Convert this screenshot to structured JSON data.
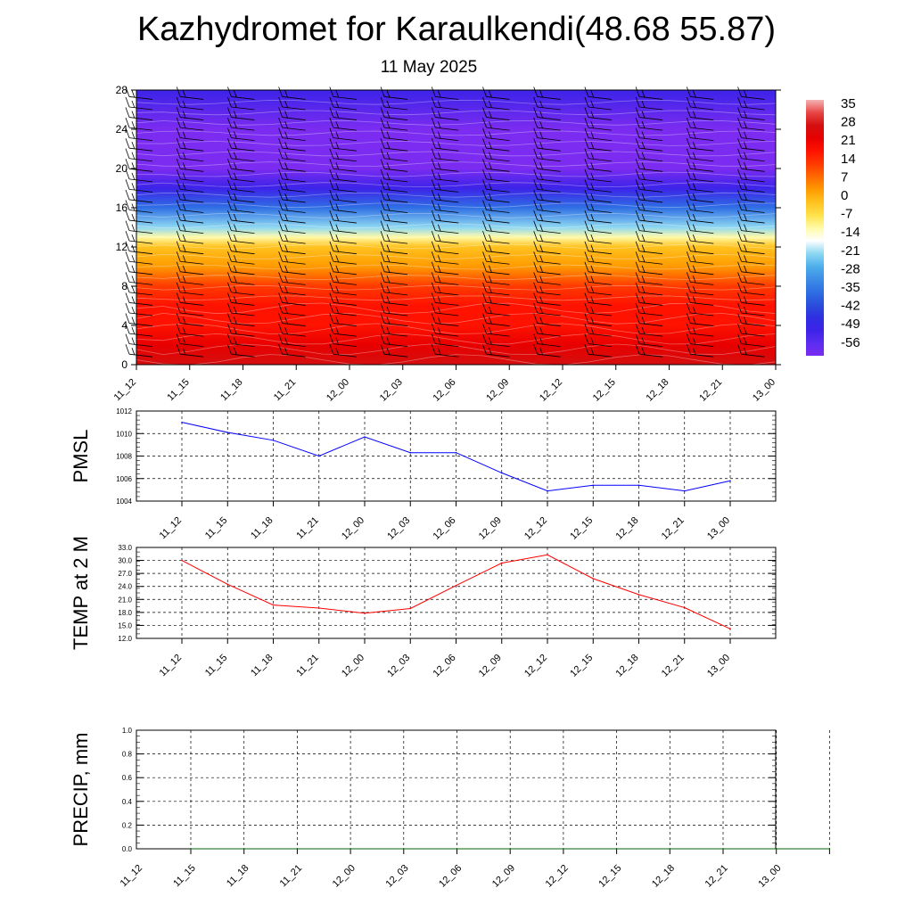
{
  "header": {
    "title": "Kazhydromet for Karaulkendi(48.68 55.87)",
    "date": "11 May 2025"
  },
  "colors": {
    "pmsl_line": "#0000ff",
    "temp_line": "#ff0000",
    "precip_line": "#006400",
    "grid": "#000000",
    "palette": [
      "#7b2cf0",
      "#5a2df0",
      "#3c23e8",
      "#2f2fe0",
      "#2a4fdc",
      "#2f6fe4",
      "#3d8de6",
      "#4fb0ec",
      "#8ed8f2",
      "#ffffff",
      "#fffaa6",
      "#ffe14a",
      "#ffc21f",
      "#ff9a00",
      "#ff6a00",
      "#ff3a00",
      "#ff1200",
      "#e80000",
      "#d40f0f",
      "#e84545",
      "#f4b4b4"
    ]
  },
  "chart_data": [
    {
      "type": "heatmap",
      "name": "vertical-cross-section",
      "x": [
        "11_12",
        "11_15",
        "11_18",
        "11_21",
        "12_00",
        "12_03",
        "12_06",
        "12_09",
        "12_12",
        "12_15",
        "12_18",
        "12_21",
        "13_00"
      ],
      "yticks": [
        "28",
        "24",
        "20",
        "16",
        "12",
        "8",
        "4",
        "0"
      ],
      "ylim": [
        0,
        28
      ],
      "colorbar_labels": [
        "35",
        "28",
        "21",
        "14",
        "7",
        "0",
        "-7",
        "-14",
        "-21",
        "-28",
        "-35",
        "-42",
        "-49",
        "-56"
      ],
      "temperature_profile": [
        {
          "level": 0,
          "value": 30
        },
        {
          "level": 2,
          "value": 26
        },
        {
          "level": 4,
          "value": 22
        },
        {
          "level": 6,
          "value": 18
        },
        {
          "level": 8,
          "value": 13
        },
        {
          "level": 10,
          "value": 7
        },
        {
          "level": 12,
          "value": -2
        },
        {
          "level": 13,
          "value": -12
        },
        {
          "level": 14,
          "value": -22
        },
        {
          "level": 16,
          "value": -35
        },
        {
          "level": 18,
          "value": -50
        },
        {
          "level": 20,
          "value": -58
        },
        {
          "level": 22,
          "value": -60
        },
        {
          "level": 24,
          "value": -58
        },
        {
          "level": 28,
          "value": -52
        }
      ],
      "wind_barbs": true
    },
    {
      "type": "line",
      "ylabel": "PMSL",
      "categories": [
        "11_12",
        "11_15",
        "11_18",
        "11_21",
        "12_00",
        "12_03",
        "12_06",
        "12_09",
        "12_12",
        "12_15",
        "12_18",
        "12_21",
        "13_00"
      ],
      "values": [
        1011.0,
        1010.1,
        1009.4,
        1008.0,
        1009.7,
        1008.3,
        1008.3,
        1006.5,
        1004.9,
        1005.4,
        1005.4,
        1004.9,
        1005.8
      ],
      "ylim": [
        1004,
        1012
      ],
      "yticks": [
        "1012",
        "1010",
        "1008",
        "1006",
        "1004"
      ],
      "grid": true
    },
    {
      "type": "line",
      "ylabel": "TEMP at 2 M",
      "categories": [
        "11_12",
        "11_15",
        "11_18",
        "11_21",
        "12_00",
        "12_03",
        "12_06",
        "12_09",
        "12_12",
        "12_15",
        "12_18",
        "12_21",
        "13_00"
      ],
      "values": [
        30.0,
        24.5,
        19.7,
        19.0,
        17.8,
        18.9,
        24.2,
        29.4,
        31.3,
        25.8,
        22.1,
        19.1,
        14.2
      ],
      "ylim": [
        12,
        33
      ],
      "yticks": [
        "33.0",
        "30.0",
        "27.0",
        "24.0",
        "21.0",
        "18.0",
        "15.0",
        "12.0"
      ],
      "grid": true
    },
    {
      "type": "line",
      "ylabel": "PRECIP, mm",
      "categories": [
        "11_12",
        "11_15",
        "11_18",
        "11_21",
        "12_00",
        "12_03",
        "12_06",
        "12_09",
        "12_12",
        "12_15",
        "12_18",
        "12_21",
        "13_00"
      ],
      "values": [
        0,
        0,
        0,
        0,
        0,
        0,
        0,
        0,
        0,
        0,
        0,
        0,
        0
      ],
      "ylim": [
        0,
        1
      ],
      "yticks": [
        "1.0",
        "0.8",
        "0.6",
        "0.4",
        "0.2",
        "0.0"
      ],
      "grid": true
    }
  ]
}
